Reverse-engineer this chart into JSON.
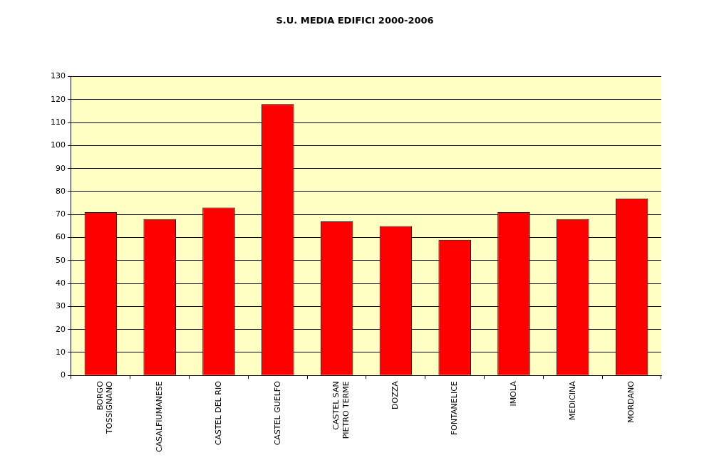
{
  "chart_data": {
    "type": "bar",
    "title": "S.U. MEDIA EDIFICI 2000-2006",
    "categories": [
      "BORGO TOSSIGNANO",
      "CASALFIUMANESE",
      "CASTEL DEL RIO",
      "CASTEL GUELFO",
      "CASTEL SAN PIETRO TERME",
      "DOZZA",
      "FONTANELICE",
      "IMOLA",
      "MEDICINA",
      "MORDANO"
    ],
    "values": [
      71,
      68,
      73,
      118,
      67,
      65,
      59,
      71,
      68,
      77
    ],
    "color": "#ff0000",
    "ylim": [
      0,
      130
    ],
    "yticks": [
      0,
      10,
      20,
      30,
      40,
      50,
      60,
      70,
      80,
      90,
      100,
      110,
      120,
      130
    ],
    "grid": "y",
    "legend": false
  }
}
